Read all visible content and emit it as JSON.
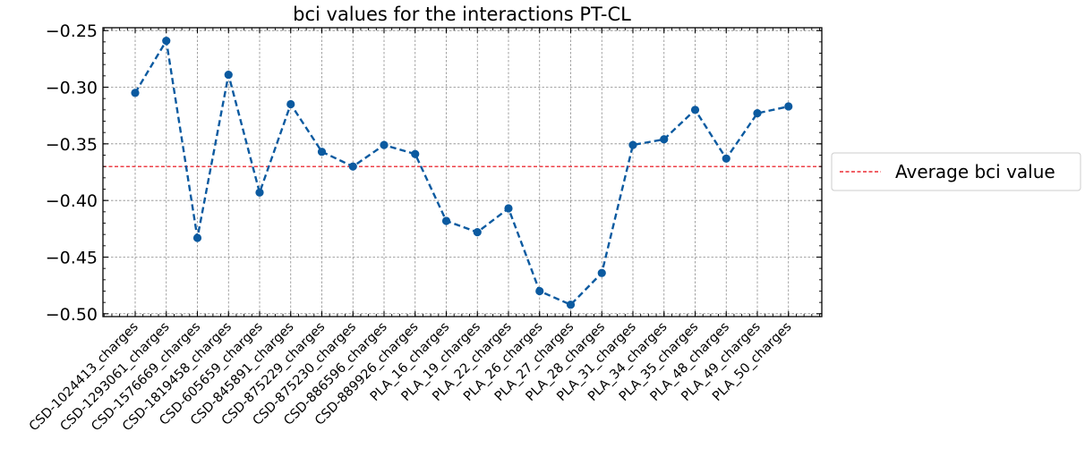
{
  "chart_data": {
    "type": "line",
    "title": "bci values for the interactions PT-CL",
    "xlabel": "",
    "ylabel": "",
    "categories": [
      "CSD-1024413_charges",
      "CSD-1293061_charges",
      "CSD-1576669_charges",
      "CSD-1819458_charges",
      "CSD-605659_charges",
      "CSD-845891_charges",
      "CSD-875229_charges",
      "CSD-875230_charges",
      "CSD-886596_charges",
      "CSD-889926_charges",
      "PLA_16_charges",
      "PLA_19_charges",
      "PLA_22_charges",
      "PLA_26_charges",
      "PLA_27_charges",
      "PLA_28_charges",
      "PLA_31_charges",
      "PLA_34_charges",
      "PLA_35_charges",
      "PLA_48_charges",
      "PLA_49_charges",
      "PLA_50_charges"
    ],
    "series": [
      {
        "values": [
          -0.305,
          -0.259,
          -0.433,
          -0.289,
          -0.393,
          -0.315,
          -0.357,
          -0.37,
          -0.351,
          -0.359,
          -0.418,
          -0.428,
          -0.407,
          -0.48,
          -0.492,
          -0.464,
          -0.351,
          -0.346,
          -0.32,
          -0.363,
          -0.323,
          -0.317
        ],
        "color": "#0b5aa0",
        "line_style": "dashed",
        "marker": "circle"
      }
    ],
    "reference_line": {
      "name": "Average bci value",
      "value": -0.37,
      "color": "#e8000b",
      "line_style": "dashed"
    },
    "yticks": [
      -0.25,
      -0.3,
      -0.35,
      -0.4,
      -0.45,
      -0.5
    ],
    "ytick_labels": [
      "−0.25",
      "−0.30",
      "−0.35",
      "−0.40",
      "−0.45",
      "−0.50"
    ],
    "ylim": [
      -0.5025,
      -0.2475
    ],
    "grid": true,
    "legend_placement": "outside-right"
  }
}
